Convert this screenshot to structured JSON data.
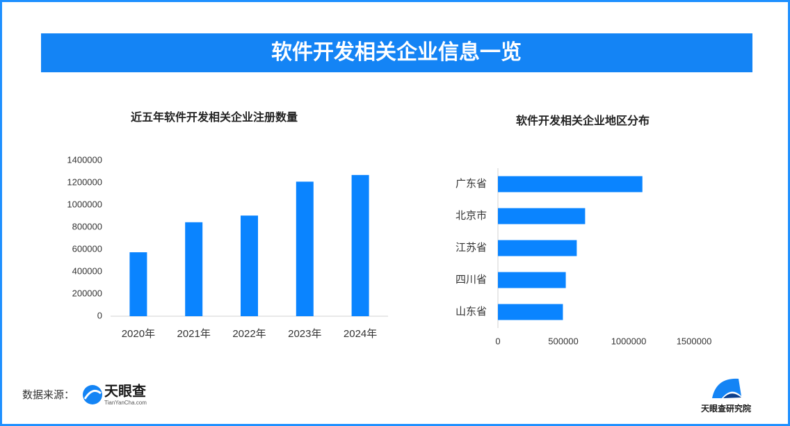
{
  "title": "软件开发相关企业信息一览",
  "chart_data": [
    {
      "type": "bar",
      "title": "近五年软件开发相关企业注册数量",
      "categories": [
        "2020年",
        "2021年",
        "2022年",
        "2023年",
        "2024年"
      ],
      "values": [
        575000,
        845000,
        905000,
        1210000,
        1270000
      ],
      "color": "#0a84ff",
      "ylim": [
        0,
        1400000
      ],
      "yticks": [
        0,
        200000,
        400000,
        600000,
        800000,
        1000000,
        1200000,
        1400000
      ],
      "grid": false
    },
    {
      "type": "barh",
      "title": "软件开发相关企业地区分布",
      "categories": [
        "广东省",
        "北京市",
        "江苏省",
        "四川省",
        "山东省"
      ],
      "values": [
        1105000,
        667000,
        603000,
        519000,
        497000
      ],
      "color": "#0a84ff",
      "xlim": [
        0,
        1500000
      ],
      "xticks": [
        0,
        500000,
        1000000,
        1500000
      ],
      "grid": false
    }
  ],
  "source_label": "数据来源：",
  "source_logo": "天眼查",
  "source_logo_sub": "TianYanCha.com",
  "brand": "天眼查研究院"
}
